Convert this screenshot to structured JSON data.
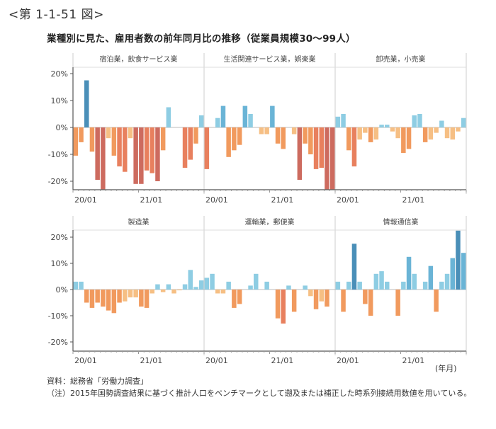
{
  "figure": {
    "label": "<第 1-1-51 図>",
    "title": "業種別に見た、雇用者数の前年同月比の推移（従業員規模30〜99人）",
    "unit_label": "(年月)",
    "source": "資料：総務省「労働力調査」",
    "note": "（注）2015年国勢調査結果に基づく推計人口をベンチマークとして遡及または補正した時系列接続用数値を用いている。"
  },
  "colors": {
    "pos_light": "#8ecde3",
    "pos_mid": "#6ab4d6",
    "pos_dark": "#4a8fb8",
    "neg_light": "#f6bf84",
    "neg_mid": "#f19a5e",
    "neg_strong": "#e8805e",
    "neg_dark": "#cd6b5f",
    "axis": "#555555",
    "divider": "#cccccc"
  },
  "chart_data": {
    "type": "bar",
    "title": "業種別に見た、雇用者数の前年同月比の推移（従業員規模30〜99人）",
    "xlabel": "(年月)",
    "ylabel": "",
    "ylim": [
      -24,
      24
    ],
    "yticks": [
      20,
      10,
      0,
      -10,
      -20
    ],
    "ytick_labels": [
      "20%",
      "10%",
      "0%",
      "-10%",
      "-20%"
    ],
    "x": [
      "20/01",
      "20/02",
      "20/03",
      "20/04",
      "20/05",
      "20/06",
      "20/07",
      "20/08",
      "20/09",
      "20/10",
      "20/11",
      "20/12",
      "21/01",
      "21/02",
      "21/03",
      "21/04",
      "21/05",
      "21/06",
      "21/07",
      "21/08",
      "21/09",
      "21/10",
      "21/11",
      "21/12"
    ],
    "xtick_labels": [
      "20/01",
      "21/01"
    ],
    "grid": false,
    "legend": "none",
    "panels": [
      {
        "name": "宿泊業，飲食サービス業",
        "values": [
          -10.5,
          -5.5,
          17.5,
          -9,
          -19.5,
          -23,
          -4,
          -10.5,
          -14.5,
          -16.5,
          -4,
          -21,
          -21,
          -16,
          -17,
          -20,
          -8.5,
          7.5,
          0,
          0,
          -15,
          -12,
          -6,
          4.5
        ]
      },
      {
        "name": "生活関連サービス業，娯楽業",
        "values": [
          -15.5,
          0,
          3.5,
          8,
          -11,
          -8.5,
          -6.5,
          8,
          5,
          0,
          -2.5,
          -2.5,
          8,
          -6,
          -8,
          0,
          -2.5,
          -19.5,
          -6,
          -10,
          -15.5,
          -15,
          -23,
          -23
        ]
      },
      {
        "name": "卸売業，小売業",
        "values": [
          4,
          5,
          -8.5,
          -14.5,
          -4.5,
          -2,
          -5.5,
          -4.5,
          1,
          1,
          -1.5,
          -4,
          -9.5,
          -8,
          4.5,
          5,
          -5.5,
          -4.5,
          -2,
          2.5,
          -4,
          -4.5,
          -1.5,
          3.5
        ]
      },
      {
        "name": "製造業",
        "values": [
          3,
          3,
          -5,
          -7,
          -5,
          -6.5,
          -8,
          -9,
          -5,
          -4.5,
          -3,
          -3,
          -6.5,
          -7,
          -1.5,
          2,
          -1,
          2,
          -1.5,
          -0.3,
          2,
          7.5,
          1,
          3.5
        ]
      },
      {
        "name": "運輸業，郵便業",
        "values": [
          4.5,
          6,
          -1.5,
          -1.5,
          3,
          -7,
          -5.5,
          0,
          1.5,
          6,
          0,
          3,
          0,
          -11,
          -13,
          1.5,
          -8.5,
          0,
          1.5,
          -2.5,
          -7.5,
          -4.5,
          -6.5,
          0
        ]
      },
      {
        "name": "情報通信業",
        "values": [
          3,
          -8.5,
          3,
          17.5,
          3,
          -5.5,
          -10,
          6,
          7,
          3,
          0,
          -10,
          3,
          12.5,
          6,
          0,
          3,
          9,
          -8.5,
          3,
          6,
          12,
          22.5,
          14
        ]
      }
    ]
  }
}
